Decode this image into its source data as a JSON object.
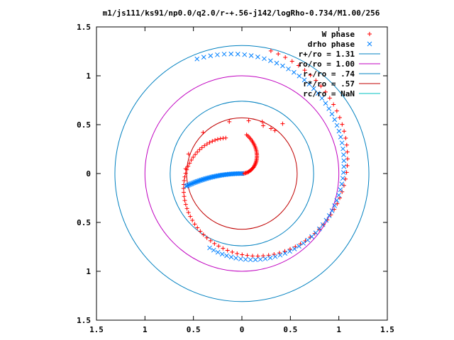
{
  "chart_data": {
    "type": "scatter",
    "title": "m1/js111/ks91/np0.0/q2.0/r-+.56-j142/logRho-0.734/M1.00/256",
    "xlim": [
      -1.5,
      1.5
    ],
    "ylim": [
      -1.5,
      1.5
    ],
    "x_ticks": [
      -1.5,
      -1,
      -0.5,
      0,
      0.5,
      1,
      1.5
    ],
    "x_tick_labels": [
      "1.5",
      "1",
      "0.5",
      "0",
      "0.5",
      "1",
      "1.5"
    ],
    "y_ticks": [
      1.5,
      1,
      0.5,
      0,
      -0.5,
      -1,
      -1.5
    ],
    "y_tick_labels": [
      "1.5",
      "1",
      "0.5",
      "0",
      "0.5",
      "1",
      "1.5"
    ],
    "grid": false,
    "legend_position": "top-right",
    "series": [
      {
        "name": "W phase",
        "kind": "points",
        "marker": "plus",
        "color": "#ff0000",
        "arms": [
          {
            "r_from": 0.0,
            "r_to": 0.4,
            "phase_from": 0.0,
            "phase_to": 1.45,
            "count": 40,
            "points": [
              [
                0.21,
                0.53
              ],
              [
                0.42,
                0.51
              ]
            ]
          },
          {
            "r_from": 0.4,
            "r_to": 1.29,
            "phase_from": 2.0,
            "phase_to": 7.62,
            "count": 90
          },
          {
            "points": [
              [
                -0.58,
                0.05
              ],
              [
                -0.55,
                0.2
              ],
              [
                -0.4,
                0.42
              ],
              [
                -0.13,
                0.53
              ],
              [
                0.07,
                0.54
              ],
              [
                0.22,
                0.49
              ],
              [
                0.3,
                0.46
              ],
              [
                0.34,
                0.44
              ]
            ]
          }
        ]
      },
      {
        "name": "drho phase",
        "kind": "points",
        "marker": "cross",
        "color": "#0080ff",
        "arms": [
          {
            "r_from": 0.0,
            "r_to": 0.59,
            "phase_from": 0.0,
            "phase_to": -0.22,
            "count": 50,
            "direction": "left"
          },
          {
            "r_from": 0.83,
            "r_to": 1.26,
            "phase_from": 4.3,
            "phase_to": 8.23,
            "count": 70
          }
        ]
      },
      {
        "name": "r+/ro = 1.31",
        "kind": "circle",
        "r": 1.31,
        "color": "#0080c0"
      },
      {
        "name": "ro/ro = 1.00",
        "kind": "circle",
        "r": 1.0,
        "color": "#c000c0"
      },
      {
        "name": "r-/ro = .74",
        "kind": "circle",
        "r": 0.74,
        "color": "#0080c0"
      },
      {
        "name": "r*/ro = .57",
        "kind": "circle",
        "r": 0.57,
        "color": "#c00000"
      },
      {
        "name": "rc/ro = NaN",
        "kind": "circle",
        "r": null,
        "color": "#00c0c0"
      }
    ]
  }
}
